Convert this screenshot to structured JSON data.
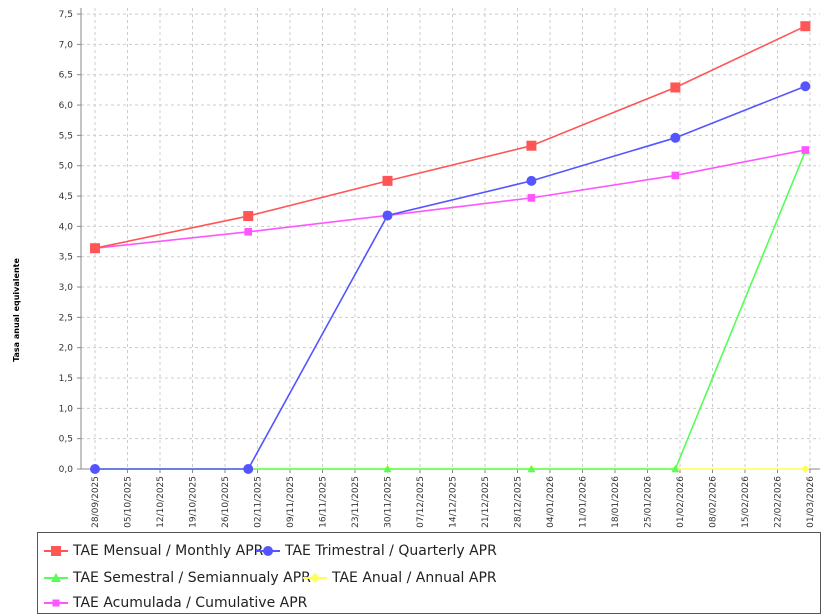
{
  "chart_data": {
    "type": "line",
    "ylabel": "Tasa anual equivalente",
    "xlabel": "",
    "ylim": [
      0,
      7.6
    ],
    "yticks": [
      "0,0",
      "0,5",
      "1,0",
      "1,5",
      "2,0",
      "2,5",
      "3,0",
      "3,5",
      "4,0",
      "4,5",
      "5,0",
      "5,5",
      "6,0",
      "6,5",
      "7,0",
      "7,5"
    ],
    "xtick_labels": [
      "28/09/2025",
      "05/10/2025",
      "12/10/2025",
      "19/10/2025",
      "26/10/2025",
      "02/11/2025",
      "09/11/2025",
      "16/11/2025",
      "23/11/2025",
      "30/11/2025",
      "07/12/2025",
      "14/12/2025",
      "21/12/2025",
      "28/12/2025",
      "04/01/2026",
      "11/01/2026",
      "18/01/2026",
      "25/01/2026",
      "01/02/2026",
      "08/02/2026",
      "15/02/2026",
      "22/02/2026",
      "01/03/2026"
    ],
    "x": [
      "28/09/2025",
      "31/10/2025",
      "30/11/2025",
      "31/12/2025",
      "31/01/2026",
      "28/02/2026"
    ],
    "grid": true,
    "legend_position": "bottom",
    "series": [
      {
        "name": "TAE Mensual / Monthly APR",
        "color": "#ff5555",
        "marker": "square",
        "values": [
          3.64,
          4.17,
          4.75,
          5.33,
          6.29,
          7.3
        ]
      },
      {
        "name": "TAE Trimestral / Quarterly APR",
        "color": "#5555ff",
        "marker": "circle",
        "values": [
          0.0,
          0.0,
          4.18,
          4.75,
          5.46,
          6.31
        ]
      },
      {
        "name": "TAE Semestral / Semiannualy APR",
        "color": "#55ff55",
        "marker": "triangle",
        "values": [
          0.0,
          0.0,
          0.0,
          0.0,
          0.0,
          5.24
        ]
      },
      {
        "name": "TAE Anual / Annual APR",
        "color": "#ffff55",
        "marker": "diamond",
        "values": [
          0.0,
          0.0,
          0.0,
          0.0,
          0.0,
          0.0
        ]
      },
      {
        "name": "TAE Acumulada / Cumulative APR",
        "color": "#ff55ff",
        "marker": "square",
        "values": [
          3.64,
          3.91,
          4.18,
          4.47,
          4.84,
          5.26
        ]
      }
    ]
  }
}
